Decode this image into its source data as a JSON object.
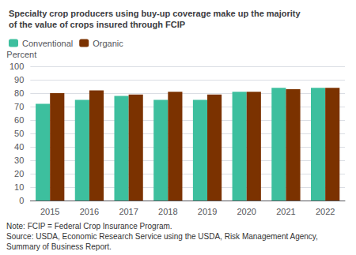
{
  "chart_data": {
    "type": "bar",
    "title": "Specialty crop producers using buy-up coverage make up the majority\nof the value of crops insured through FCIP",
    "ylabel": "Percent",
    "categories": [
      "2015",
      "2016",
      "2017",
      "2018",
      "2019",
      "2020",
      "2021",
      "2022"
    ],
    "series": [
      {
        "name": "Conventional",
        "color": "#3dbf9e",
        "values": [
          72,
          75,
          78,
          75,
          75,
          81,
          84,
          84
        ]
      },
      {
        "name": "Organic",
        "color": "#7b3200",
        "values": [
          80,
          82,
          79,
          81,
          79,
          81,
          83,
          84
        ]
      }
    ],
    "ylim": [
      0,
      100
    ],
    "yticks": [
      0,
      10,
      20,
      30,
      40,
      50,
      60,
      70,
      80,
      90,
      100
    ],
    "grid": true,
    "legend": "upper left",
    "annotations": [
      "Note: FCIP = Federal Crop Insurance Program.",
      "Source: USDA, Economic Research Service using the USDA, Risk Management Agency,",
      "Summary of Business Report."
    ]
  }
}
